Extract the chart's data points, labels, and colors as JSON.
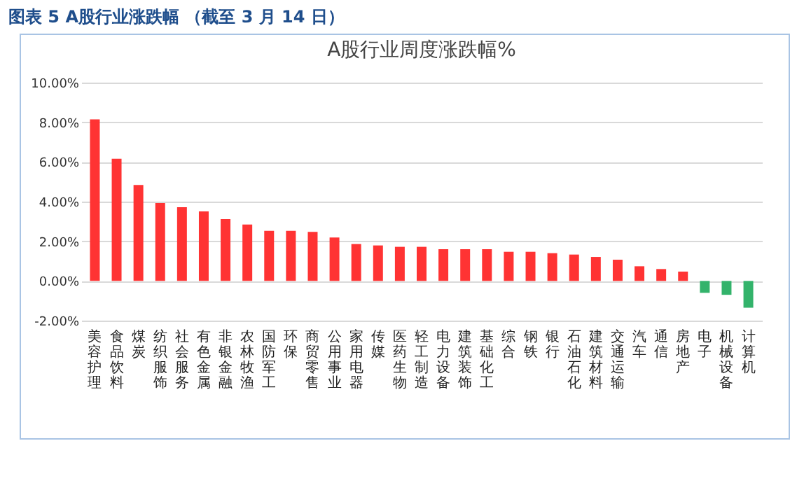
{
  "chart_data": {
    "type": "bar",
    "title": "图表 5 A股行业涨跌幅 （截至 3 月 14 日）",
    "subtitle": "A股行业周度涨跌幅%",
    "categories": [
      "美容护理",
      "食品饮料",
      "煤炭",
      "纺织服饰",
      "社会服务",
      "有色金属",
      "非银金融",
      "农林牧渔",
      "国防军工",
      "环保",
      "商贸零售",
      "公用事业",
      "家用电器",
      "传媒",
      "医药生物",
      "轻工制造",
      "电力设备",
      "建筑装饰",
      "基础化工",
      "综合",
      "钢铁",
      "银行",
      "石油石化",
      "建筑材料",
      "交通运输",
      "汽车",
      "通信",
      "房地产",
      "电子",
      "机械设备",
      "计算机"
    ],
    "values": [
      8.15,
      6.16,
      4.84,
      3.93,
      3.72,
      3.51,
      3.12,
      2.84,
      2.53,
      2.53,
      2.47,
      2.19,
      1.86,
      1.79,
      1.72,
      1.72,
      1.6,
      1.6,
      1.6,
      1.47,
      1.47,
      1.4,
      1.33,
      1.21,
      1.07,
      0.74,
      0.6,
      0.47,
      -0.6,
      -0.7,
      -1.35
    ],
    "colors": [
      "#ff3333",
      "#ff3333",
      "#ff3333",
      "#ff3333",
      "#ff3333",
      "#ff3333",
      "#ff3333",
      "#ff3333",
      "#ff3333",
      "#ff3333",
      "#ff3333",
      "#ff3333",
      "#ff3333",
      "#ff3333",
      "#ff3333",
      "#ff3333",
      "#ff3333",
      "#ff3333",
      "#ff3333",
      "#ff3333",
      "#ff3333",
      "#ff3333",
      "#ff3333",
      "#ff3333",
      "#ff3333",
      "#ff3333",
      "#ff3333",
      "#ff3333",
      "#33b36b",
      "#33b36b",
      "#33b36b"
    ],
    "ylim": [
      -2,
      10
    ],
    "yticks": [
      {
        "value": -2,
        "label": "-2.00%"
      },
      {
        "value": 0,
        "label": "0.00%"
      },
      {
        "value": 2,
        "label": "2.00%"
      },
      {
        "value": 4,
        "label": "4.00%"
      },
      {
        "value": 6,
        "label": "6.00%"
      },
      {
        "value": 8,
        "label": "8.00%"
      },
      {
        "value": 10,
        "label": "10.00%"
      }
    ],
    "grid": "y"
  }
}
